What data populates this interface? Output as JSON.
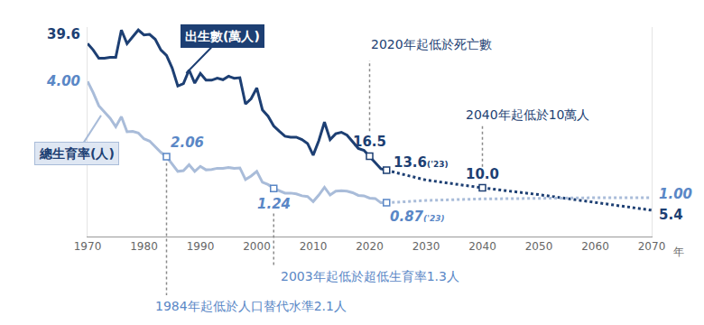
{
  "chart_data": {
    "type": "line",
    "x": [
      1970,
      1971,
      1972,
      1973,
      1974,
      1975,
      1976,
      1977,
      1978,
      1979,
      1980,
      1981,
      1982,
      1983,
      1984,
      1985,
      1986,
      1987,
      1988,
      1989,
      1990,
      1991,
      1992,
      1993,
      1994,
      1995,
      1996,
      1997,
      1998,
      1999,
      2000,
      2001,
      2002,
      2003,
      2004,
      2005,
      2006,
      2007,
      2008,
      2009,
      2010,
      2011,
      2012,
      2013,
      2014,
      2015,
      2016,
      2017,
      2018,
      2019,
      2020,
      2021,
      2022,
      2023
    ],
    "projection_x": [
      2023,
      2030,
      2040,
      2050,
      2060,
      2070
    ],
    "series": [
      {
        "name": "出生數(萬人)",
        "color": "#1d3f73",
        "axis": "y",
        "line_style": "solid",
        "values": [
          39.6,
          38.3,
          36.6,
          36.6,
          36.8,
          36.8,
          42.4,
          39.6,
          41.0,
          42.4,
          41.4,
          41.5,
          40.5,
          38.3,
          37.2,
          34.6,
          30.9,
          31.4,
          34.2,
          31.5,
          33.5,
          32.1,
          32.1,
          32.5,
          32.2,
          32.9,
          32.5,
          32.6,
          27.2,
          28.3,
          30.5,
          26.0,
          24.7,
          22.7,
          21.6,
          20.6,
          20.4,
          20.4,
          19.9,
          19.1,
          16.7,
          19.7,
          23.5,
          19.9,
          21.1,
          21.4,
          20.8,
          19.4,
          18.1,
          17.7,
          16.5,
          15.3,
          13.9,
          13.6
        ],
        "projection_values": [
          13.6,
          11.6,
          10.0,
          8.6,
          7.0,
          5.4
        ]
      },
      {
        "name": "總生育率(人)",
        "color": "#a9bcd9",
        "axis": "y2",
        "line_style": "solid",
        "values": [
          4.0,
          3.71,
          3.37,
          3.21,
          3.05,
          2.83,
          3.09,
          2.7,
          2.71,
          2.67,
          2.52,
          2.46,
          2.32,
          2.17,
          2.06,
          1.88,
          1.68,
          1.7,
          1.85,
          1.68,
          1.81,
          1.72,
          1.73,
          1.76,
          1.76,
          1.78,
          1.76,
          1.77,
          1.47,
          1.56,
          1.68,
          1.4,
          1.34,
          1.24,
          1.18,
          1.12,
          1.12,
          1.1,
          1.05,
          1.03,
          0.9,
          1.07,
          1.27,
          1.07,
          1.17,
          1.18,
          1.17,
          1.13,
          1.06,
          1.05,
          0.99,
          0.98,
          0.87,
          0.87
        ],
        "projection_values": [
          0.87,
          0.93,
          0.97,
          0.99,
          1.0,
          1.0
        ]
      }
    ],
    "xlim": [
      1970,
      2070
    ],
    "xticks": [
      1970,
      1980,
      1990,
      2000,
      2010,
      2020,
      2030,
      2040,
      2050,
      2060,
      2070
    ],
    "x_label": "年",
    "ylim": [
      0,
      43
    ],
    "yticks": [],
    "y2lim": [
      0,
      5.4
    ],
    "y2ticks": [],
    "tick_labels": "x",
    "grid": false,
    "labels": [
      {
        "x": 1970,
        "value": 39.6,
        "text": "39.6",
        "axis": "y"
      },
      {
        "x": 1970,
        "value": 4.0,
        "text": "4.00",
        "axis": "y2"
      },
      {
        "x": 1984,
        "value": 2.06,
        "text": "2.06",
        "axis": "y2"
      },
      {
        "x": 2003,
        "value": 1.24,
        "text": "1.24",
        "axis": "y2"
      },
      {
        "x": 2020,
        "value": 16.5,
        "text": "16.5",
        "axis": "y"
      },
      {
        "x": 2023,
        "value": 13.6,
        "text": "13.6('23)",
        "axis": "y"
      },
      {
        "x": 2023,
        "value": 0.87,
        "text": "0.87('23)",
        "axis": "y2"
      },
      {
        "x": 2040,
        "value": 10.0,
        "text": "10.0",
        "axis": "y"
      },
      {
        "x": 2070,
        "value": 5.4,
        "text": "5.4",
        "axis": "y"
      },
      {
        "x": 2070,
        "value": 1.0,
        "text": "1.00",
        "axis": "y2"
      }
    ],
    "callouts": [
      {
        "x": 1984,
        "value": 2.06,
        "axis": "y2",
        "text": "1984年起低於人口替代水準2.1人"
      },
      {
        "x": 2003,
        "value": 1.24,
        "axis": "y2",
        "text": "2003年起低於超低生育率1.3人"
      },
      {
        "x": 2020,
        "value": 16.5,
        "axis": "y",
        "text": "2020年起低於死亡數"
      },
      {
        "x": 2040,
        "value": 10.0,
        "axis": "y",
        "text": "2040年起低於10萬人"
      }
    ]
  }
}
